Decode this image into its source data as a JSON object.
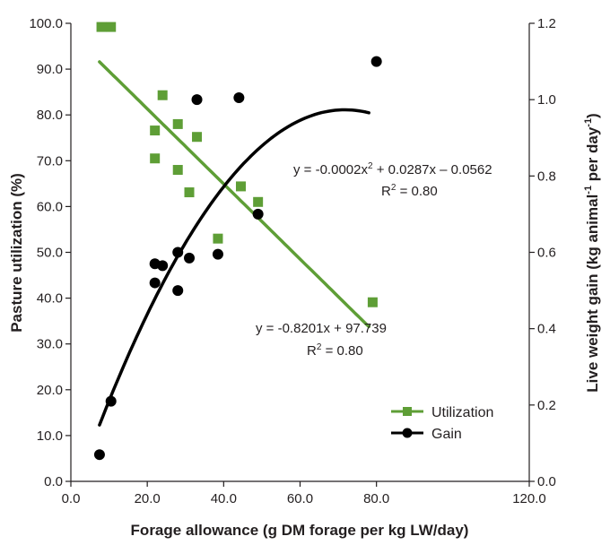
{
  "chart_data": {
    "type": "scatter",
    "title": "",
    "xlabel": "Forage allowance (g DM forage per kg LW/day)",
    "ylabel_left": "Pasture utilization (%)",
    "ylabel_right_parts": [
      "Live weight gain (kg animal",
      "-1",
      " per day",
      "-1",
      ")"
    ],
    "xlim": [
      0,
      120
    ],
    "ylim_left": [
      0,
      100
    ],
    "ylim_right": [
      0,
      1.2
    ],
    "x_ticks": [
      "0.0",
      "20.0",
      "40.0",
      "60.0",
      "80.0",
      "120.0"
    ],
    "x_tick_values": [
      0,
      20,
      40,
      60,
      80,
      120
    ],
    "y_left_ticks": [
      "0.0",
      "10.0",
      "20.0",
      "30.0",
      "40.0",
      "50.0",
      "60.0",
      "70.0",
      "80.0",
      "90.0",
      "100.0"
    ],
    "y_right_ticks": [
      "0.0",
      "0.2",
      "0.4",
      "0.6",
      "0.8",
      "1.0",
      "1.2"
    ],
    "grid": false,
    "legend_position": "bottom-right",
    "series": [
      {
        "name": "Utilization",
        "axis": "left",
        "marker": "square",
        "color": "#5e9e36",
        "points": [
          [
            8,
            99.2
          ],
          [
            10.5,
            99.2
          ],
          [
            22,
            76.6
          ],
          [
            22,
            70.5
          ],
          [
            24,
            84.3
          ],
          [
            28,
            78.0
          ],
          [
            28,
            68.0
          ],
          [
            31,
            63.1
          ],
          [
            33,
            75.2
          ],
          [
            38.5,
            53.0
          ],
          [
            44.5,
            64.4
          ],
          [
            49,
            61.0
          ],
          [
            79,
            39.1
          ]
        ],
        "fit": {
          "kind": "linear",
          "a": -0.8201,
          "b": 97.739,
          "x_range": [
            7.5,
            78
          ]
        }
      },
      {
        "name": "Gain",
        "axis": "right",
        "marker": "circle",
        "color": "#000000",
        "points": [
          [
            7.5,
            0.07
          ],
          [
            10.5,
            0.21
          ],
          [
            22,
            0.57
          ],
          [
            22,
            0.52
          ],
          [
            24,
            0.565
          ],
          [
            28,
            0.6
          ],
          [
            28,
            0.5
          ],
          [
            31,
            0.585
          ],
          [
            33,
            1.0
          ],
          [
            38.5,
            0.595
          ],
          [
            44,
            1.005
          ],
          [
            49,
            0.7
          ],
          [
            80,
            1.1
          ]
        ],
        "fit": {
          "kind": "poly2",
          "a": -0.0002,
          "b": 0.0287,
          "c": -0.0562,
          "x_range": [
            7.5,
            78
          ]
        }
      }
    ],
    "annotations": {
      "gain_eq_main": "y = -0.0002x",
      "gain_eq_sup": "2",
      "gain_eq_rest": " + 0.0287x – 0.0562",
      "gain_r2_main": "R",
      "gain_r2_sup": "2",
      "gain_r2_rest": " = 0.80",
      "util_eq": "y = -0.8201x + 97.739",
      "util_r2_main": "R",
      "util_r2_sup": "2",
      "util_r2_rest": " = 0.80"
    }
  }
}
